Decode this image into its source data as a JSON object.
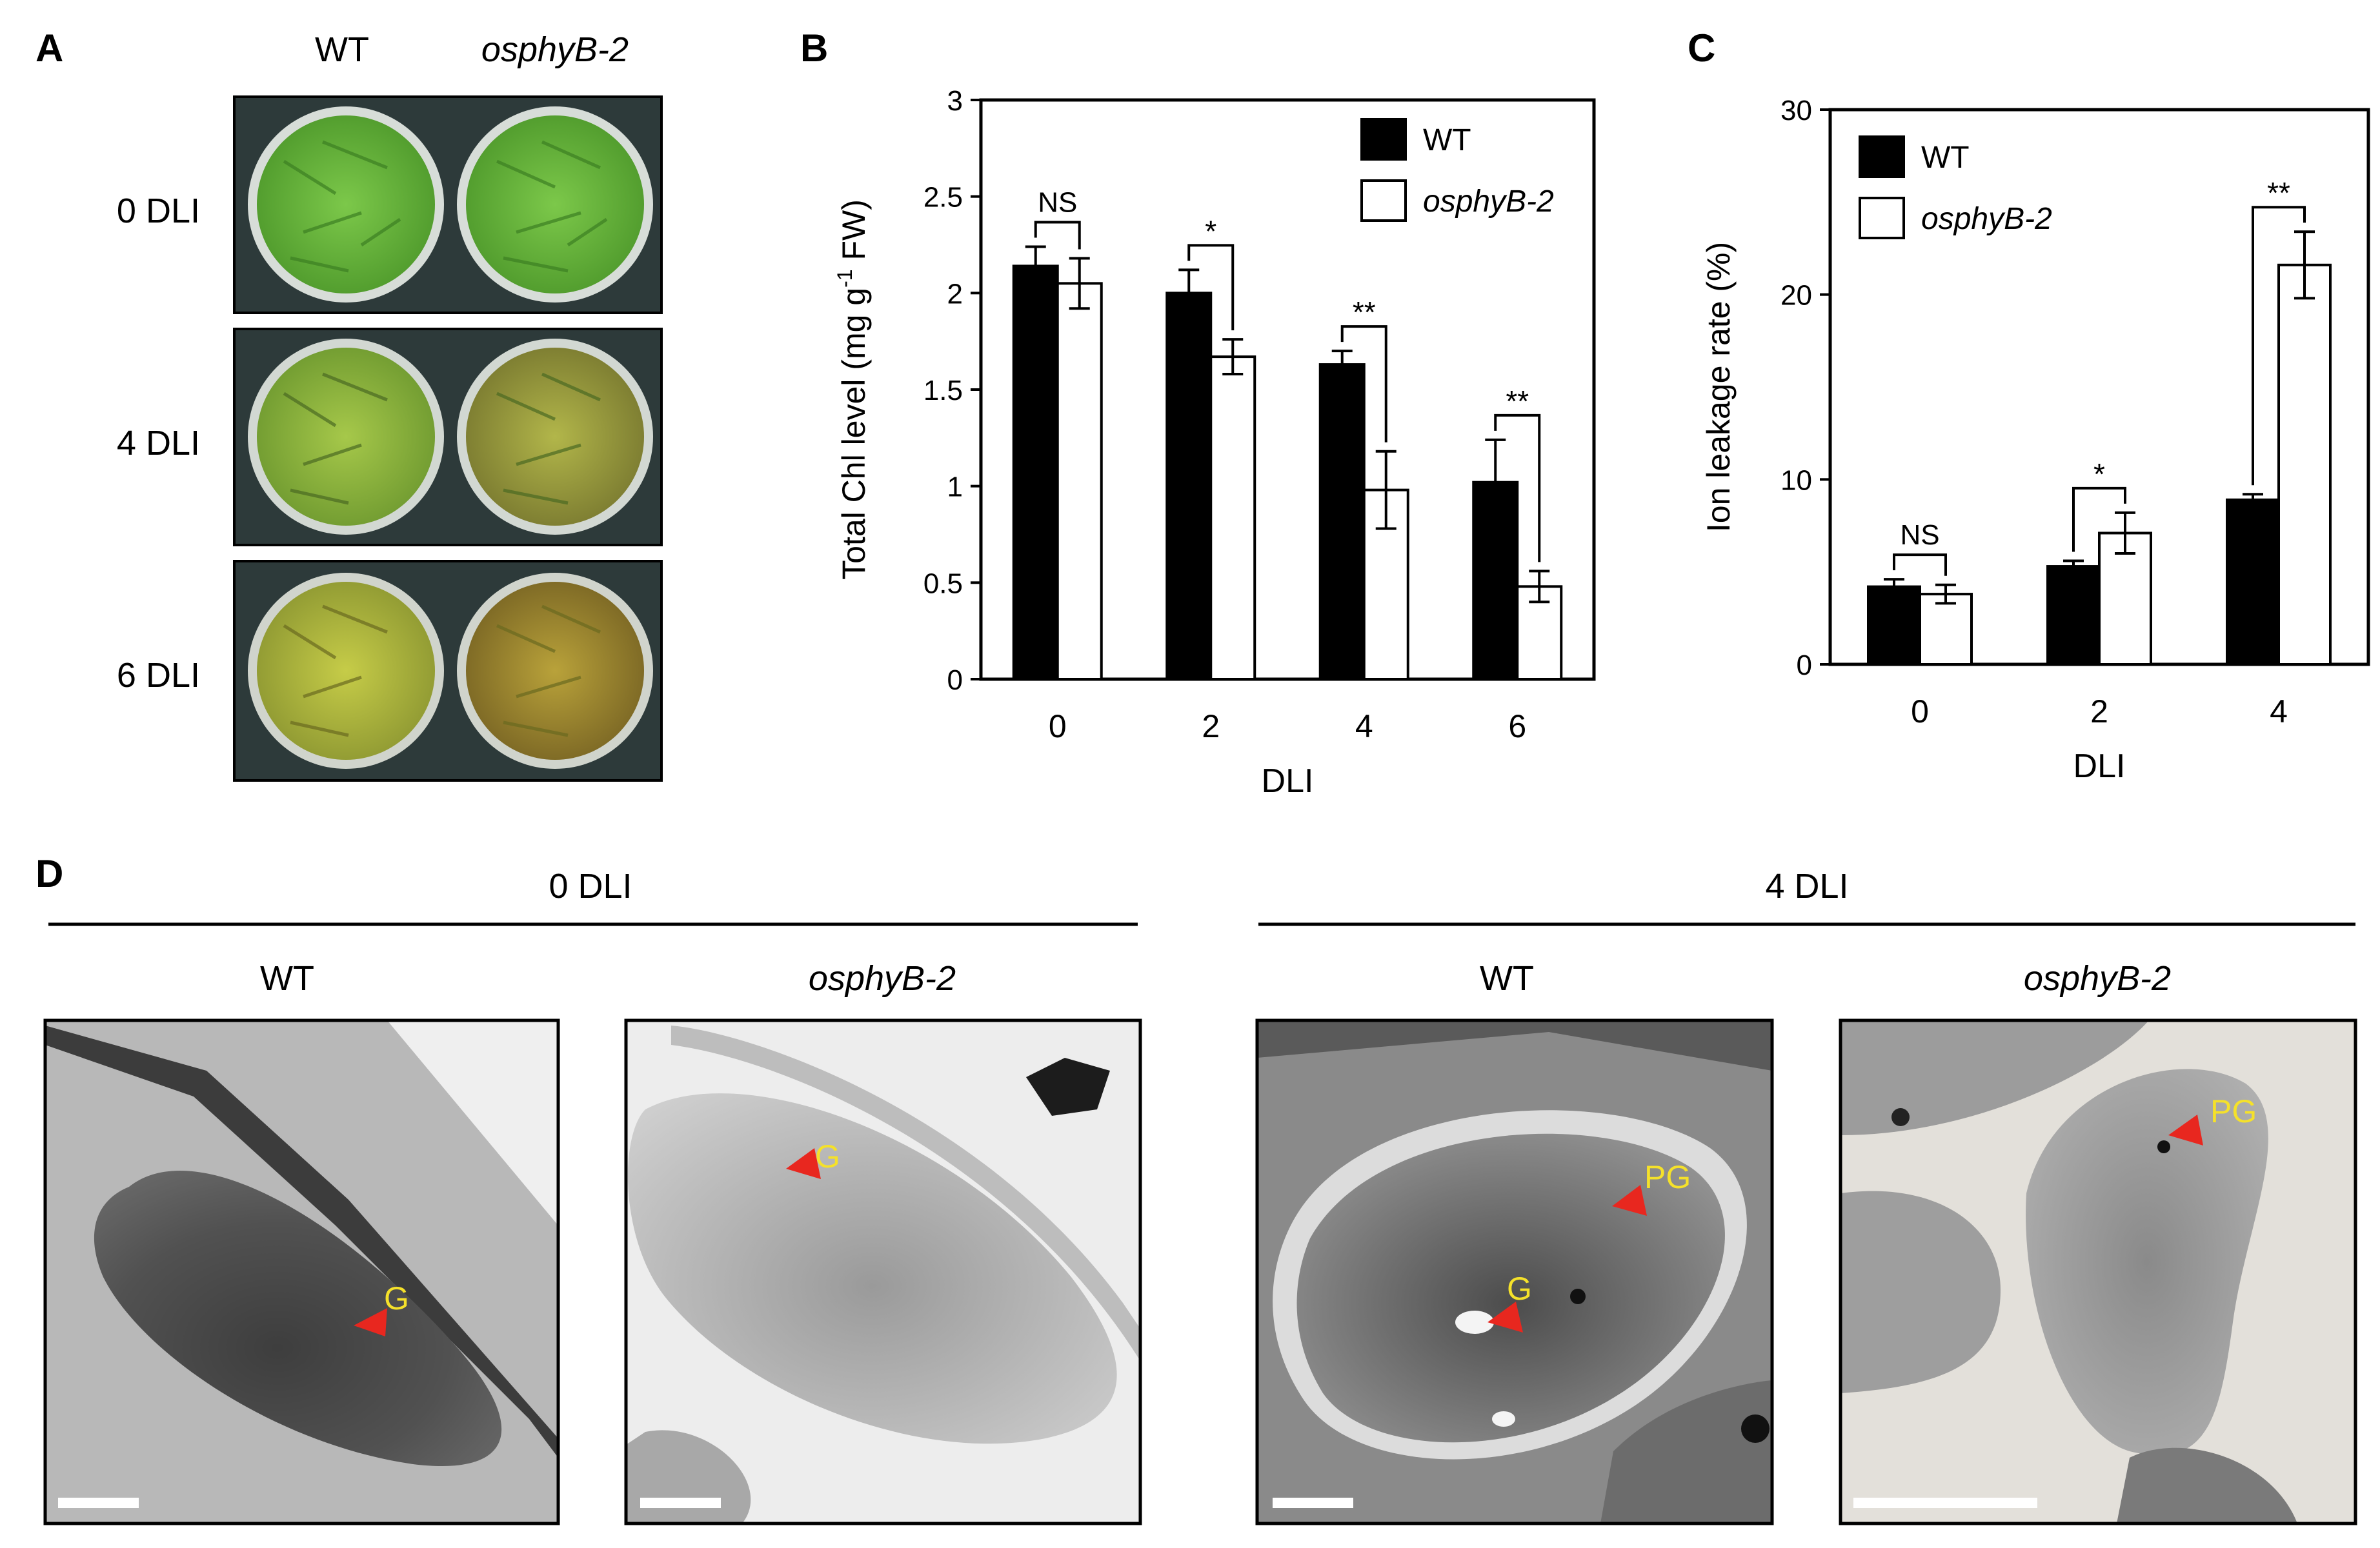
{
  "panel_letters": {
    "a": "A",
    "b": "B",
    "c": "C",
    "d": "D"
  },
  "panelA": {
    "col_headers": [
      "WT",
      "osphyB-2"
    ],
    "row_labels": [
      "0 DLI",
      "4 DLI",
      "6 DLI"
    ]
  },
  "chart_data": [
    {
      "type": "bar",
      "categories": [
        "0",
        "2",
        "4",
        "6"
      ],
      "xlabel": "DLI",
      "ylabel": "Total Chl level (mg g",
      "ylabel_sup": "-1",
      "ylabel_tail": " FW)",
      "ylim": [
        0,
        3
      ],
      "yticks": [
        "0",
        "0.5",
        "1",
        "1.5",
        "2",
        "2.5",
        "3"
      ],
      "series": [
        {
          "name": "WT",
          "values": [
            2.14,
            2.0,
            1.63,
            1.02
          ],
          "errors": [
            0.1,
            0.12,
            0.07,
            0.22
          ],
          "color": "#000000"
        },
        {
          "name": "osphyB-2",
          "values": [
            2.05,
            1.67,
            0.98,
            0.48
          ],
          "errors": [
            0.13,
            0.09,
            0.2,
            0.08
          ],
          "color": "#ffffff"
        }
      ],
      "significance": [
        "NS",
        "*",
        "**",
        "**"
      ],
      "legend": "top-right",
      "grid": false
    },
    {
      "type": "bar",
      "categories": [
        "0",
        "2",
        "4"
      ],
      "xlabel": "DLI",
      "ylabel": "Ion leakage rate (%)",
      "ylim": [
        0,
        30
      ],
      "yticks": [
        "0",
        "10",
        "20",
        "30"
      ],
      "series": [
        {
          "name": "WT",
          "values": [
            4.2,
            5.3,
            8.9
          ],
          "errors": [
            0.4,
            0.3,
            0.3
          ],
          "color": "#000000"
        },
        {
          "name": "osphyB-2",
          "values": [
            3.8,
            7.1,
            21.6
          ],
          "errors": [
            0.5,
            1.1,
            1.8
          ],
          "color": "#ffffff"
        }
      ],
      "significance": [
        "NS",
        "*",
        "**"
      ],
      "legend": "top-left",
      "grid": false
    }
  ],
  "panelD": {
    "groups": [
      "0 DLI",
      "4 DLI"
    ],
    "genotypes": [
      "WT",
      "osphyB-2",
      "WT",
      "osphyB-2"
    ],
    "markers": [
      "G",
      "G",
      "PG",
      "G",
      "PG"
    ]
  },
  "colors": {
    "marker_arrow": "#e8271f",
    "marker_text": "#f5e12a"
  }
}
